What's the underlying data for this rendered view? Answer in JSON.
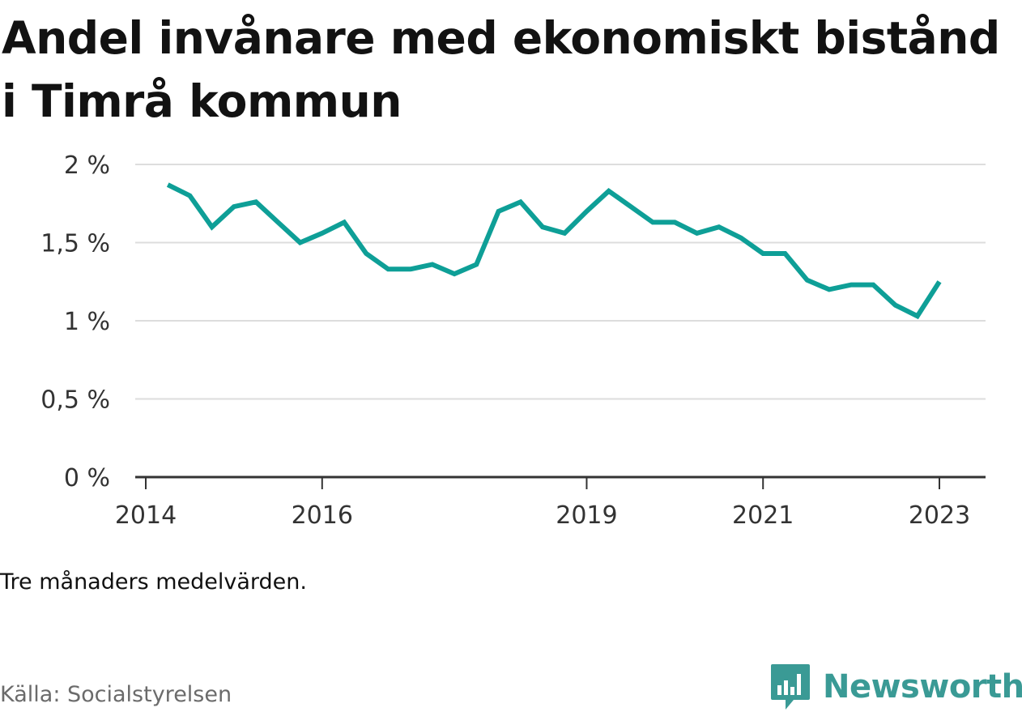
{
  "title": "Andel invånare med ekonomiskt bistånd i Timrå kommun",
  "note": "Tre månaders medelvärden.",
  "source": "Källa: Socialstyrelsen",
  "brand": {
    "name": "Newsworthy",
    "icon": "newsworthy-logo-icon"
  },
  "colors": {
    "line": "#0e9f97",
    "grid": "#dddddd",
    "axis": "#333333",
    "brand": "#3a9a95"
  },
  "chart_data": {
    "type": "line",
    "title": "Andel invånare med ekonomiskt bistånd i Timrå kommun",
    "xlabel": "",
    "ylabel": "",
    "x_ticks": [
      "2014",
      "2016",
      "2019",
      "2021",
      "2023"
    ],
    "y_ticks": [
      "0 %",
      "0,5 %",
      "1 %",
      "1,5 %",
      "2 %"
    ],
    "ylim": [
      0,
      2
    ],
    "grid": true,
    "legend": "none",
    "series": [
      {
        "x": [
          "2014-04",
          "2014-07",
          "2014-10",
          "2015-01",
          "2015-04",
          "2015-07",
          "2015-10",
          "2016-01",
          "2016-04",
          "2016-07",
          "2016-10",
          "2017-01",
          "2017-04",
          "2017-07",
          "2017-10",
          "2018-01",
          "2018-04",
          "2018-07",
          "2018-10",
          "2019-01",
          "2019-04",
          "2019-07",
          "2019-10",
          "2020-01",
          "2020-04",
          "2020-07",
          "2020-10",
          "2021-01",
          "2021-04",
          "2021-07",
          "2021-10",
          "2022-01",
          "2022-04",
          "2022-07",
          "2022-10",
          "2023-01"
        ],
        "values": [
          1.87,
          1.8,
          1.6,
          1.73,
          1.76,
          1.63,
          1.5,
          1.56,
          1.63,
          1.43,
          1.33,
          1.33,
          1.36,
          1.3,
          1.36,
          1.7,
          1.76,
          1.6,
          1.56,
          1.7,
          1.83,
          1.73,
          1.63,
          1.63,
          1.56,
          1.6,
          1.53,
          1.43,
          1.43,
          1.26,
          1.2,
          1.23,
          1.23,
          1.1,
          1.03,
          1.25
        ]
      }
    ]
  }
}
